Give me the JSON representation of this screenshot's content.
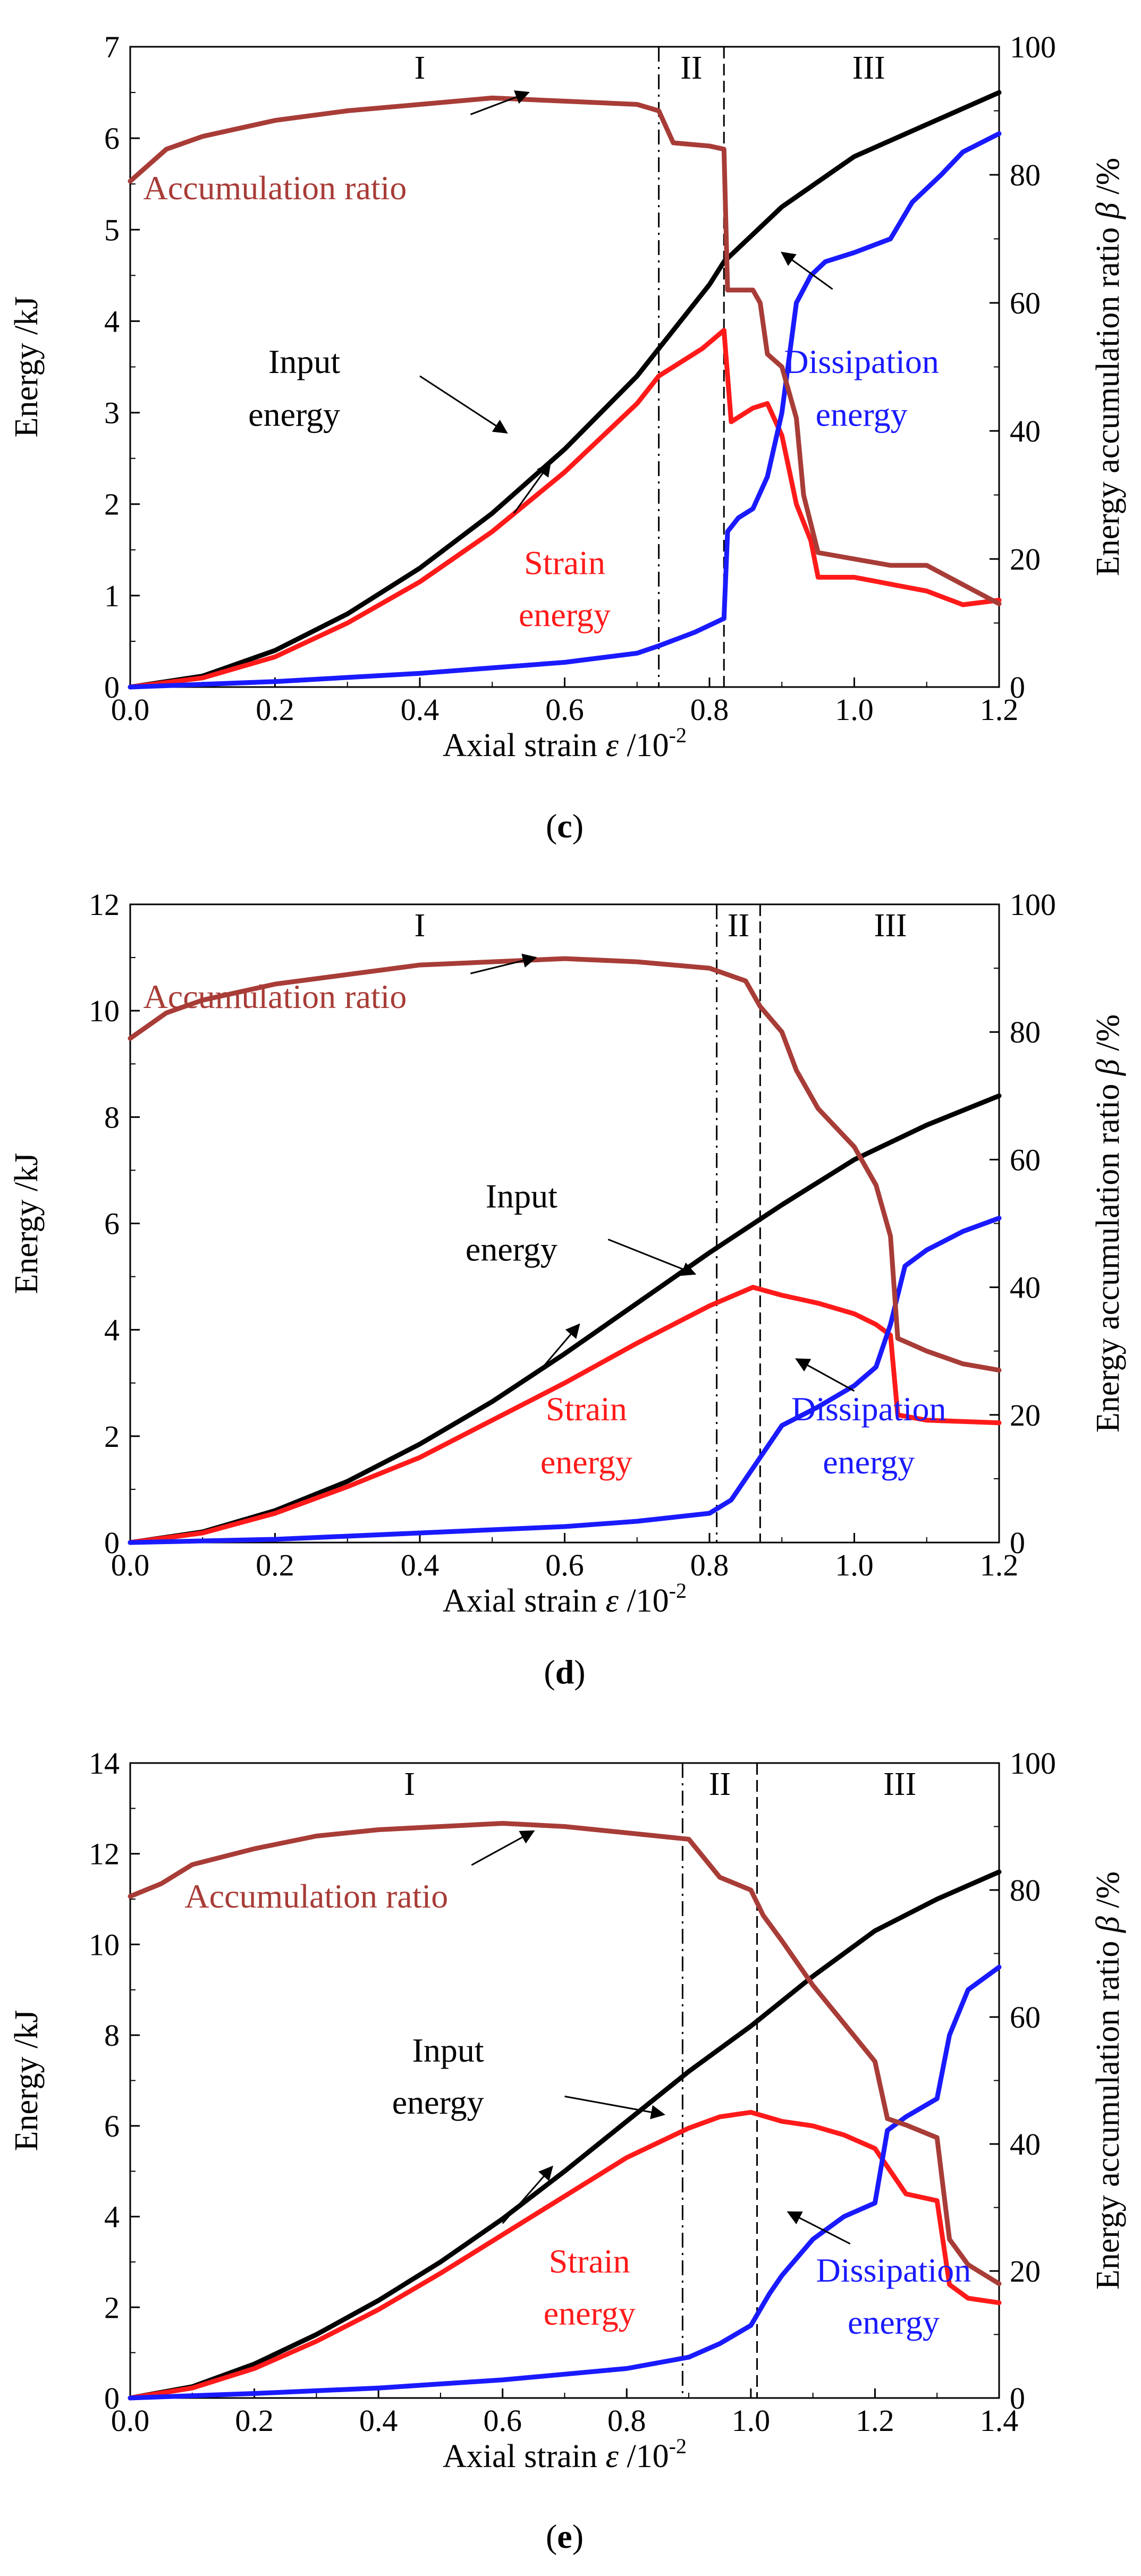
{
  "colors": {
    "input": "#000000",
    "strain": "#ff1a1a",
    "dissipation": "#1a1aff",
    "accumulation": "#a83c37",
    "axis": "#000000",
    "divider": "#000000"
  },
  "chart_data": [
    {
      "type": "line",
      "panel_label": "c",
      "xlabel": "Axial strain",
      "xlabel_symbol": "ε",
      "xlabel_unit": "/10",
      "xlabel_exp": "-2",
      "ylabel": "Energy /kJ",
      "y2label": "Energy accumulation ratio",
      "y2label_symbol": "β",
      "y2label_unit": "/%",
      "xlim": [
        0,
        1.2
      ],
      "ylim": [
        0,
        7
      ],
      "y2lim": [
        0,
        100
      ],
      "xticks": [
        "0.0",
        "0.2",
        "0.4",
        "0.6",
        "0.8",
        "1.0",
        "1.2"
      ],
      "yticks": [
        "0",
        "1",
        "2",
        "3",
        "4",
        "5",
        "6",
        "7"
      ],
      "y2ticks": [
        "0",
        "20",
        "40",
        "60",
        "80",
        "100"
      ],
      "dividers": [
        0.73,
        0.82
      ],
      "stages": [
        {
          "label": "I",
          "x": 0.4
        },
        {
          "label": "II",
          "x": 0.775
        },
        {
          "label": "III",
          "x": 1.02
        }
      ],
      "series": [
        {
          "name": "Input energy",
          "axis": "left",
          "color_key": "input",
          "x": [
            0,
            0.1,
            0.2,
            0.3,
            0.4,
            0.5,
            0.6,
            0.7,
            0.73,
            0.8,
            0.82,
            0.9,
            1.0,
            1.1,
            1.2
          ],
          "values": [
            0,
            0.12,
            0.4,
            0.8,
            1.3,
            1.9,
            2.6,
            3.4,
            3.7,
            4.4,
            4.65,
            5.25,
            5.8,
            6.15,
            6.5
          ]
        },
        {
          "name": "Strain energy",
          "axis": "left",
          "color_key": "strain",
          "x": [
            0,
            0.1,
            0.2,
            0.3,
            0.4,
            0.5,
            0.6,
            0.7,
            0.73,
            0.79,
            0.82,
            0.83,
            0.86,
            0.88,
            0.9,
            0.92,
            0.94,
            0.95,
            1.0,
            1.1,
            1.15,
            1.2
          ],
          "values": [
            0,
            0.1,
            0.33,
            0.7,
            1.15,
            1.7,
            2.35,
            3.1,
            3.4,
            3.7,
            3.9,
            2.9,
            3.05,
            3.1,
            2.75,
            2.0,
            1.6,
            1.2,
            1.2,
            1.05,
            0.9,
            0.95
          ]
        },
        {
          "name": "Dissipation energy",
          "axis": "left",
          "color_key": "dissipation",
          "x": [
            0,
            0.2,
            0.4,
            0.6,
            0.7,
            0.73,
            0.78,
            0.82,
            0.825,
            0.84,
            0.86,
            0.88,
            0.9,
            0.92,
            0.94,
            0.96,
            1.0,
            1.05,
            1.08,
            1.12,
            1.15,
            1.2
          ],
          "values": [
            0,
            0.06,
            0.15,
            0.27,
            0.37,
            0.45,
            0.6,
            0.75,
            1.7,
            1.85,
            1.95,
            2.3,
            3.0,
            4.2,
            4.5,
            4.65,
            4.75,
            4.9,
            5.3,
            5.6,
            5.85,
            6.05
          ]
        },
        {
          "name": "Accumulation ratio",
          "axis": "right",
          "color_key": "accumulation",
          "x": [
            0,
            0.05,
            0.1,
            0.2,
            0.3,
            0.4,
            0.5,
            0.6,
            0.7,
            0.73,
            0.75,
            0.8,
            0.82,
            0.825,
            0.86,
            0.87,
            0.88,
            0.9,
            0.92,
            0.93,
            0.95,
            1.0,
            1.05,
            1.1,
            1.15,
            1.2
          ],
          "values": [
            79,
            84,
            86,
            88.5,
            90,
            91,
            92,
            91.5,
            91,
            90,
            85,
            84.5,
            84,
            62,
            62,
            60,
            52,
            50,
            42,
            30,
            21,
            20,
            19,
            19,
            16,
            13
          ]
        }
      ],
      "labels": [
        {
          "text": "Accumulation ratio",
          "color_key": "accumulation",
          "x": 0.2,
          "y": 5.45,
          "anchor": "middle"
        },
        {
          "text": "Input",
          "color_key": "input",
          "x": 0.29,
          "y": 3.55,
          "anchor": "end"
        },
        {
          "text": "energy",
          "color_key": "input",
          "x": 0.29,
          "y": 2.97,
          "anchor": "end"
        },
        {
          "text": "Strain",
          "color_key": "strain",
          "x": 0.6,
          "y": 1.35,
          "anchor": "middle"
        },
        {
          "text": "energy",
          "color_key": "strain",
          "x": 0.6,
          "y": 0.78,
          "anchor": "middle"
        },
        {
          "text": "Dissipation",
          "color_key": "dissipation",
          "x": 1.01,
          "y": 3.55,
          "anchor": "middle"
        },
        {
          "text": "energy",
          "color_key": "dissipation",
          "x": 1.01,
          "y": 2.97,
          "anchor": "middle"
        }
      ],
      "arrows": [
        {
          "from": [
            0.47,
            6.26
          ],
          "to": [
            0.55,
            6.5
          ]
        },
        {
          "from": [
            0.4,
            3.4
          ],
          "to": [
            0.52,
            2.78
          ]
        },
        {
          "from": [
            0.53,
            1.9
          ],
          "to": [
            0.58,
            2.45
          ]
        },
        {
          "from": [
            0.97,
            4.35
          ],
          "to": [
            0.9,
            4.75
          ]
        }
      ]
    },
    {
      "type": "line",
      "panel_label": "d",
      "xlabel": "Axial strain",
      "xlabel_symbol": "ε",
      "xlabel_unit": "/10",
      "xlabel_exp": "-2",
      "ylabel": "Energy /kJ",
      "y2label": "Energy accumulation ratio",
      "y2label_symbol": "β",
      "y2label_unit": "/%",
      "xlim": [
        0,
        1.2
      ],
      "ylim": [
        0,
        12
      ],
      "y2lim": [
        0,
        100
      ],
      "xticks": [
        "0.0",
        "0.2",
        "0.4",
        "0.6",
        "0.8",
        "1.0",
        "1.2"
      ],
      "yticks": [
        "0",
        "2",
        "4",
        "6",
        "8",
        "10",
        "12"
      ],
      "y2ticks": [
        "0",
        "20",
        "40",
        "60",
        "80",
        "100"
      ],
      "dividers": [
        0.81,
        0.87
      ],
      "stages": [
        {
          "label": "I",
          "x": 0.4
        },
        {
          "label": "II",
          "x": 0.84
        },
        {
          "label": "III",
          "x": 1.05
        }
      ],
      "series": [
        {
          "name": "Input energy",
          "axis": "left",
          "color_key": "input",
          "x": [
            0,
            0.1,
            0.2,
            0.3,
            0.4,
            0.5,
            0.6,
            0.7,
            0.8,
            0.9,
            1.0,
            1.1,
            1.2
          ],
          "values": [
            0,
            0.2,
            0.6,
            1.15,
            1.85,
            2.65,
            3.55,
            4.5,
            5.45,
            6.35,
            7.2,
            7.85,
            8.4
          ]
        },
        {
          "name": "Strain energy",
          "axis": "left",
          "color_key": "strain",
          "x": [
            0,
            0.1,
            0.2,
            0.3,
            0.4,
            0.5,
            0.6,
            0.7,
            0.8,
            0.86,
            0.9,
            0.95,
            1.0,
            1.03,
            1.05,
            1.06,
            1.1,
            1.2
          ],
          "values": [
            0,
            0.18,
            0.55,
            1.05,
            1.6,
            2.3,
            3.0,
            3.75,
            4.45,
            4.8,
            4.65,
            4.5,
            4.3,
            4.1,
            3.9,
            2.4,
            2.3,
            2.25
          ]
        },
        {
          "name": "Dissipation energy",
          "axis": "left",
          "color_key": "dissipation",
          "x": [
            0,
            0.2,
            0.4,
            0.6,
            0.7,
            0.8,
            0.83,
            0.87,
            0.9,
            0.95,
            1.0,
            1.03,
            1.05,
            1.07,
            1.1,
            1.15,
            1.2
          ],
          "values": [
            0,
            0.06,
            0.18,
            0.3,
            0.4,
            0.55,
            0.8,
            1.6,
            2.2,
            2.55,
            2.95,
            3.3,
            4.1,
            5.2,
            5.5,
            5.85,
            6.1
          ]
        },
        {
          "name": "Accumulation ratio",
          "axis": "right",
          "color_key": "accumulation",
          "x": [
            0,
            0.05,
            0.1,
            0.2,
            0.3,
            0.4,
            0.5,
            0.6,
            0.7,
            0.8,
            0.85,
            0.87,
            0.9,
            0.92,
            0.95,
            1.0,
            1.03,
            1.05,
            1.06,
            1.1,
            1.15,
            1.2
          ],
          "values": [
            79,
            83,
            85,
            87.5,
            89,
            90.5,
            91,
            91.5,
            91,
            90,
            88,
            84,
            80,
            74,
            68,
            62,
            56,
            48,
            32,
            30,
            28,
            27
          ]
        }
      ],
      "labels": [
        {
          "text": "Accumulation ratio",
          "color_key": "accumulation",
          "x": 0.2,
          "y": 10.25,
          "anchor": "middle"
        },
        {
          "text": "Input",
          "color_key": "input",
          "x": 0.59,
          "y": 6.5,
          "anchor": "end"
        },
        {
          "text": "energy",
          "color_key": "input",
          "x": 0.59,
          "y": 5.5,
          "anchor": "end"
        },
        {
          "text": "Strain",
          "color_key": "strain",
          "x": 0.63,
          "y": 2.5,
          "anchor": "middle"
        },
        {
          "text": "energy",
          "color_key": "strain",
          "x": 0.63,
          "y": 1.5,
          "anchor": "middle"
        },
        {
          "text": "Dissipation",
          "color_key": "dissipation",
          "x": 1.02,
          "y": 2.5,
          "anchor": "middle"
        },
        {
          "text": "energy",
          "color_key": "dissipation",
          "x": 1.02,
          "y": 1.5,
          "anchor": "middle"
        }
      ],
      "arrows": [
        {
          "from": [
            0.47,
            10.7
          ],
          "to": [
            0.56,
            11.0
          ]
        },
        {
          "from": [
            0.66,
            5.7
          ],
          "to": [
            0.78,
            5.05
          ]
        },
        {
          "from": [
            0.57,
            3.3
          ],
          "to": [
            0.62,
            4.1
          ]
        },
        {
          "from": [
            1.0,
            2.85
          ],
          "to": [
            0.92,
            3.45
          ]
        }
      ]
    },
    {
      "type": "line",
      "panel_label": "e",
      "xlabel": "Axial strain",
      "xlabel_symbol": "ε",
      "xlabel_unit": "/10",
      "xlabel_exp": "-2",
      "ylabel": "Energy /kJ",
      "y2label": "Energy accumulation ratio",
      "y2label_symbol": "β",
      "y2label_unit": "/%",
      "xlim": [
        0,
        1.4
      ],
      "ylim": [
        0,
        14
      ],
      "y2lim": [
        0,
        100
      ],
      "xticks": [
        "0.0",
        "0.2",
        "0.4",
        "0.6",
        "0.8",
        "1.0",
        "1.2",
        "1.4"
      ],
      "yticks": [
        "0",
        "2",
        "4",
        "6",
        "8",
        "10",
        "12",
        "14"
      ],
      "y2ticks": [
        "0",
        "20",
        "40",
        "60",
        "80",
        "100"
      ],
      "dividers": [
        0.89,
        1.01
      ],
      "stages": [
        {
          "label": "I",
          "x": 0.45
        },
        {
          "label": "II",
          "x": 0.95
        },
        {
          "label": "III",
          "x": 1.24
        }
      ],
      "series": [
        {
          "name": "Input energy",
          "axis": "left",
          "color_key": "input",
          "x": [
            0,
            0.1,
            0.2,
            0.3,
            0.4,
            0.5,
            0.6,
            0.7,
            0.8,
            0.9,
            1.0,
            1.1,
            1.2,
            1.3,
            1.4
          ],
          "values": [
            0,
            0.25,
            0.75,
            1.4,
            2.15,
            3.0,
            3.95,
            5.0,
            6.1,
            7.2,
            8.2,
            9.3,
            10.3,
            11.0,
            11.6
          ]
        },
        {
          "name": "Strain energy",
          "axis": "left",
          "color_key": "strain",
          "x": [
            0,
            0.1,
            0.2,
            0.3,
            0.4,
            0.5,
            0.6,
            0.7,
            0.8,
            0.9,
            0.95,
            1.0,
            1.05,
            1.1,
            1.15,
            1.2,
            1.25,
            1.3,
            1.32,
            1.35,
            1.4
          ],
          "values": [
            0,
            0.22,
            0.65,
            1.25,
            1.95,
            2.75,
            3.6,
            4.45,
            5.3,
            5.95,
            6.2,
            6.3,
            6.1,
            6.0,
            5.8,
            5.5,
            4.5,
            4.35,
            2.5,
            2.2,
            2.1
          ]
        },
        {
          "name": "Dissipation energy",
          "axis": "left",
          "color_key": "dissipation",
          "x": [
            0,
            0.2,
            0.4,
            0.6,
            0.8,
            0.9,
            0.95,
            1.0,
            1.03,
            1.05,
            1.1,
            1.15,
            1.2,
            1.22,
            1.25,
            1.3,
            1.32,
            1.35,
            1.4
          ],
          "values": [
            0,
            0.1,
            0.22,
            0.4,
            0.65,
            0.9,
            1.2,
            1.6,
            2.3,
            2.7,
            3.5,
            4.0,
            4.3,
            5.9,
            6.2,
            6.6,
            8.0,
            9.0,
            9.5
          ]
        },
        {
          "name": "Accumulation ratio",
          "axis": "right",
          "color_key": "accumulation",
          "x": [
            0,
            0.05,
            0.1,
            0.2,
            0.3,
            0.4,
            0.5,
            0.6,
            0.7,
            0.8,
            0.9,
            0.95,
            1.0,
            1.02,
            1.05,
            1.1,
            1.15,
            1.2,
            1.22,
            1.25,
            1.3,
            1.32,
            1.35,
            1.4
          ],
          "values": [
            79,
            81,
            84,
            86.5,
            88.5,
            89.5,
            90,
            90.5,
            90,
            89,
            88,
            82,
            80,
            76,
            72,
            65,
            59,
            53,
            44,
            43,
            41,
            25,
            21,
            18
          ]
        }
      ],
      "labels": [
        {
          "text": "Accumulation ratio",
          "color_key": "accumulation",
          "x": 0.3,
          "y": 11.05,
          "anchor": "middle"
        },
        {
          "text": "Input",
          "color_key": "input",
          "x": 0.57,
          "y": 7.65,
          "anchor": "end"
        },
        {
          "text": "energy",
          "color_key": "input",
          "x": 0.57,
          "y": 6.5,
          "anchor": "end"
        },
        {
          "text": "Strain",
          "color_key": "strain",
          "x": 0.74,
          "y": 3.0,
          "anchor": "middle"
        },
        {
          "text": "energy",
          "color_key": "strain",
          "x": 0.74,
          "y": 1.85,
          "anchor": "middle"
        },
        {
          "text": "Dissipation",
          "color_key": "dissipation",
          "x": 1.23,
          "y": 2.8,
          "anchor": "middle"
        },
        {
          "text": "energy",
          "color_key": "dissipation",
          "x": 1.23,
          "y": 1.65,
          "anchor": "middle"
        }
      ],
      "arrows": [
        {
          "from": [
            0.55,
            11.75
          ],
          "to": [
            0.65,
            12.5
          ]
        },
        {
          "from": [
            0.7,
            6.65
          ],
          "to": [
            0.86,
            6.25
          ]
        },
        {
          "from": [
            0.6,
            3.85
          ],
          "to": [
            0.68,
            5.1
          ]
        },
        {
          "from": [
            1.16,
            3.4
          ],
          "to": [
            1.06,
            4.1
          ]
        }
      ]
    }
  ]
}
